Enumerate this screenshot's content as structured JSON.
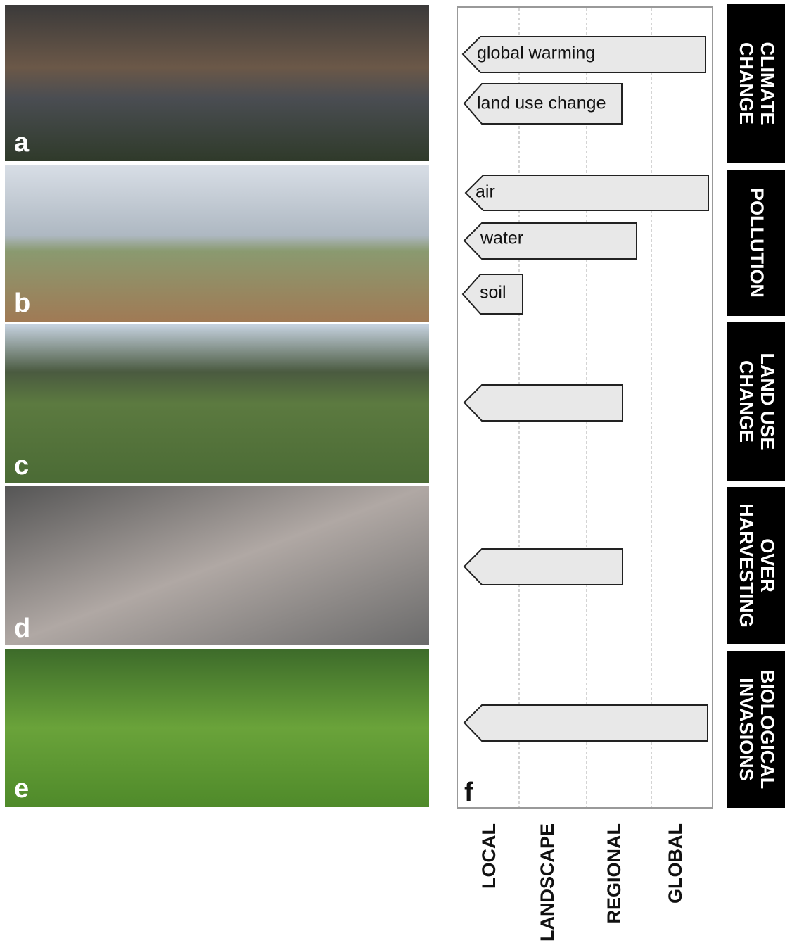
{
  "panels": [
    {
      "label": "a"
    },
    {
      "label": "b"
    },
    {
      "label": "c"
    },
    {
      "label": "d"
    },
    {
      "label": "e"
    }
  ],
  "diagram": {
    "label": "f",
    "scales": [
      "LOCAL",
      "LANDSCAPE",
      "REGIONAL",
      "GLOBAL"
    ],
    "drivers": [
      {
        "name": [
          "CLIMATE",
          "CHANGE"
        ],
        "arrows": [
          "global warming",
          "land use change"
        ]
      },
      {
        "name": [
          "POLLUTION"
        ],
        "arrows": [
          "air",
          "water",
          "soil"
        ]
      },
      {
        "name": [
          "LAND USE",
          "CHANGE"
        ]
      },
      {
        "name": [
          "OVER",
          "HARVESTING"
        ]
      },
      {
        "name": [
          "BIOLOGICAL",
          "INVASIONS"
        ]
      }
    ]
  }
}
